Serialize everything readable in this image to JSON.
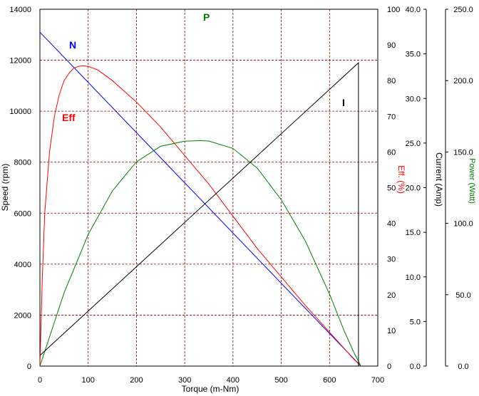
{
  "chart_data": {
    "type": "line",
    "xlabel": "Torque (m-Nm)",
    "xlim": [
      0,
      700
    ],
    "xticks": [
      "0",
      "100",
      "200",
      "300",
      "400",
      "500",
      "600",
      "700"
    ],
    "axes": {
      "speed": {
        "label": "Speed (rpm)",
        "lim": [
          0,
          14000
        ],
        "ticks": [
          "0",
          "2000",
          "4000",
          "6000",
          "8000",
          "10000",
          "12000",
          "14000"
        ],
        "color": "#000000"
      },
      "eff": {
        "label": "Eff. (%)",
        "lim": [
          0,
          100
        ],
        "ticks": [
          "0",
          "10",
          "20",
          "30",
          "40",
          "50",
          "60",
          "70",
          "80",
          "90",
          "100"
        ],
        "color": "#ff0000"
      },
      "current": {
        "label": "Current (Amp)",
        "lim": [
          0,
          40
        ],
        "ticks": [
          "0.0",
          "5.0",
          "10.0",
          "15.0",
          "20.0",
          "25.0",
          "30.0",
          "35.0",
          "40.0"
        ],
        "color": "#000000"
      },
      "power": {
        "label": "Power (Watt)",
        "lim": [
          0,
          250
        ],
        "ticks": [
          "0.0",
          "50.0",
          "100.0",
          "150.0",
          "200.0",
          "250.0"
        ],
        "color": "#008000"
      }
    },
    "series": [
      {
        "name": "N",
        "axis": "speed",
        "color": "#0000ff",
        "x": [
          0,
          665
        ],
        "y": [
          13100,
          0
        ]
      },
      {
        "name": "Eff",
        "axis": "eff",
        "color": "#ff0000",
        "x": [
          0,
          5,
          10,
          20,
          30,
          40,
          50,
          60,
          70,
          80,
          90,
          100,
          120,
          150,
          200,
          250,
          300,
          350,
          400,
          450,
          500,
          550,
          600,
          630,
          650,
          665
        ],
        "y": [
          0,
          25,
          43,
          60,
          70,
          76,
          80,
          82,
          83.5,
          84,
          84.2,
          84,
          83,
          80,
          74,
          67,
          59,
          51,
          42,
          33,
          25,
          17,
          9.5,
          5,
          2,
          0
        ]
      },
      {
        "name": "P",
        "axis": "power",
        "color": "#008000",
        "x": [
          0,
          50,
          100,
          150,
          200,
          250,
          300,
          332,
          350,
          400,
          450,
          500,
          550,
          600,
          630,
          650,
          665
        ],
        "y": [
          0,
          51.3,
          92.2,
          122.7,
          143.1,
          154.0,
          157.6,
          158,
          157.7,
          152.5,
          138.8,
          116.5,
          87.6,
          50.4,
          25,
          10,
          0
        ]
      },
      {
        "name": "I",
        "axis": "current",
        "color": "#000000",
        "x": [
          0,
          660,
          660
        ],
        "y": [
          1.2,
          34,
          0
        ]
      }
    ],
    "grid": true
  }
}
